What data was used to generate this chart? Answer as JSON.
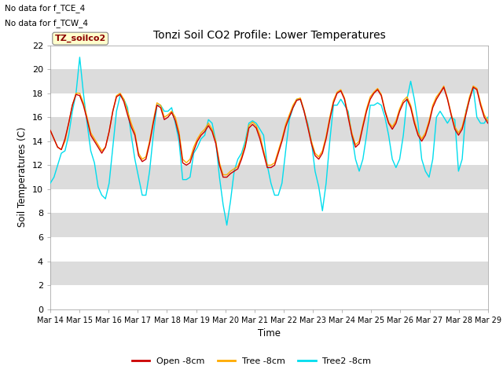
{
  "title": "Tonzi Soil CO2 Profile: Lower Temperatures",
  "ylabel": "Soil Temperatures (C)",
  "xlabel": "Time",
  "annotation1": "No data for f_TCE_4",
  "annotation2": "No data for f_TCW_4",
  "legend_box_label": "TZ_soilco2",
  "ylim": [
    0,
    22
  ],
  "yticks": [
    0,
    2,
    4,
    6,
    8,
    10,
    12,
    14,
    16,
    18,
    20,
    22
  ],
  "xtick_labels": [
    "Mar 14",
    "Mar 15",
    "Mar 16",
    "Mar 17",
    "Mar 18",
    "Mar 19",
    "Mar 20",
    "Mar 21",
    "Mar 22",
    "Mar 23",
    "Mar 24",
    "Mar 25",
    "Mar 26",
    "Mar 27",
    "Mar 28",
    "Mar 29"
  ],
  "line_open_color": "#cc0000",
  "line_tree_color": "#ffaa00",
  "line_tree2_color": "#00ddee",
  "legend_labels": [
    "Open -8cm",
    "Tree -8cm",
    "Tree2 -8cm"
  ],
  "band_gray": "#dcdcdc",
  "band_white": "#f4f4f4",
  "open_temps": [
    14.9,
    14.2,
    13.5,
    13.3,
    14.2,
    15.5,
    17.0,
    17.9,
    17.8,
    17.0,
    15.8,
    14.5,
    14.0,
    13.5,
    13.0,
    13.5,
    14.8,
    16.5,
    17.7,
    17.9,
    17.3,
    16.2,
    15.2,
    14.5,
    12.8,
    12.3,
    12.5,
    13.8,
    15.5,
    17.0,
    16.8,
    15.8,
    16.0,
    16.4,
    15.7,
    14.5,
    12.2,
    12.0,
    12.2,
    13.2,
    14.0,
    14.5,
    14.8,
    15.3,
    14.8,
    13.8,
    12.0,
    11.0,
    11.0,
    11.3,
    11.5,
    11.7,
    12.5,
    13.5,
    15.1,
    15.4,
    15.1,
    14.2,
    13.0,
    11.8,
    11.8,
    12.0,
    13.0,
    14.0,
    15.2,
    16.0,
    16.8,
    17.4,
    17.5,
    16.5,
    15.2,
    13.8,
    12.8,
    12.5,
    13.0,
    14.2,
    15.8,
    17.2,
    18.0,
    18.2,
    17.5,
    16.0,
    14.5,
    13.5,
    13.8,
    15.2,
    16.5,
    17.5,
    18.0,
    18.3,
    17.8,
    16.5,
    15.5,
    15.0,
    15.5,
    16.5,
    17.2,
    17.5,
    16.8,
    15.5,
    14.5,
    14.0,
    14.5,
    15.5,
    16.8,
    17.5,
    18.0,
    18.5,
    17.5,
    16.2,
    15.0,
    14.5,
    15.0,
    16.2,
    17.5,
    18.5,
    18.3,
    17.0,
    16.0,
    15.5
  ],
  "tree_temps": [
    14.9,
    14.2,
    13.5,
    13.3,
    14.0,
    15.5,
    17.0,
    18.0,
    18.0,
    17.2,
    16.0,
    14.7,
    14.2,
    13.7,
    13.2,
    13.5,
    14.8,
    16.5,
    17.8,
    18.0,
    17.5,
    16.5,
    15.5,
    14.7,
    13.0,
    12.5,
    12.7,
    14.0,
    15.7,
    17.2,
    17.0,
    16.0,
    16.2,
    16.5,
    16.0,
    14.8,
    12.5,
    12.2,
    12.5,
    13.5,
    14.2,
    14.7,
    15.0,
    15.5,
    15.0,
    14.0,
    12.2,
    11.2,
    11.2,
    11.5,
    11.7,
    11.9,
    12.7,
    13.7,
    15.3,
    15.6,
    15.3,
    14.5,
    13.2,
    12.0,
    12.0,
    12.2,
    13.2,
    14.2,
    15.4,
    16.2,
    17.0,
    17.5,
    17.6,
    16.6,
    15.3,
    14.0,
    13.0,
    12.7,
    13.2,
    14.4,
    16.0,
    17.4,
    18.1,
    18.3,
    17.6,
    16.2,
    14.7,
    13.7,
    14.0,
    15.4,
    16.7,
    17.7,
    18.1,
    18.4,
    17.9,
    16.6,
    15.6,
    15.2,
    15.7,
    16.7,
    17.4,
    17.7,
    17.0,
    15.7,
    14.7,
    14.2,
    14.7,
    15.7,
    17.0,
    17.7,
    18.1,
    18.6,
    17.6,
    16.3,
    15.2,
    14.7,
    15.2,
    16.4,
    17.7,
    18.6,
    18.4,
    17.2,
    16.2,
    15.7
  ],
  "tree2_temps": [
    10.5,
    11.0,
    12.0,
    13.0,
    13.2,
    14.5,
    16.5,
    18.0,
    21.0,
    18.0,
    15.5,
    13.2,
    12.2,
    10.2,
    9.5,
    9.2,
    10.5,
    13.5,
    16.5,
    17.8,
    17.5,
    16.8,
    14.5,
    12.5,
    11.0,
    9.5,
    9.5,
    11.5,
    14.5,
    17.0,
    17.0,
    16.5,
    16.5,
    16.8,
    15.5,
    14.0,
    10.8,
    10.8,
    11.0,
    13.0,
    13.5,
    14.2,
    14.5,
    15.8,
    15.5,
    14.0,
    11.0,
    8.7,
    7.0,
    9.0,
    11.5,
    12.5,
    13.0,
    14.0,
    15.5,
    15.7,
    15.5,
    15.0,
    14.5,
    12.0,
    10.5,
    9.5,
    9.5,
    10.5,
    13.2,
    15.8,
    16.8,
    17.5,
    17.5,
    16.5,
    15.5,
    14.0,
    11.5,
    10.2,
    8.2,
    10.5,
    14.0,
    17.0,
    17.0,
    17.5,
    17.0,
    16.5,
    14.5,
    12.5,
    11.5,
    12.5,
    14.5,
    17.0,
    17.0,
    17.2,
    17.0,
    16.0,
    14.5,
    12.5,
    11.8,
    12.5,
    14.5,
    17.5,
    19.0,
    17.5,
    15.5,
    12.5,
    11.5,
    11.0,
    12.5,
    16.0,
    16.5,
    16.0,
    15.5,
    16.0,
    15.8,
    11.5,
    12.5,
    16.5,
    17.5,
    18.5,
    16.0,
    15.5,
    15.5,
    16.0
  ]
}
